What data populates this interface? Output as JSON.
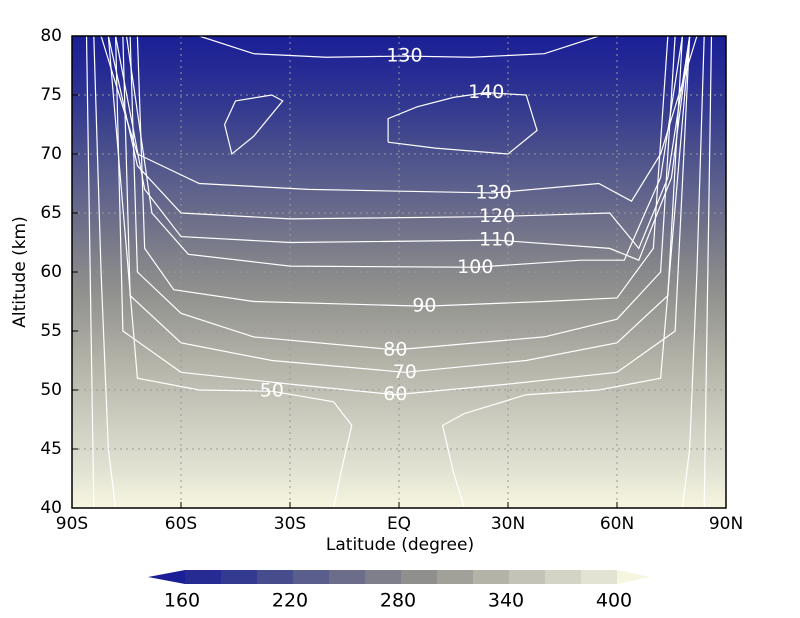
{
  "chart_data": {
    "type": "contour",
    "x_label": "Latitude (degree)",
    "y_label": "Altitude (km)",
    "xlim": [
      -90,
      90
    ],
    "ylim": [
      40,
      80
    ],
    "xticks": [
      {
        "value": -90,
        "label": "90S"
      },
      {
        "value": -60,
        "label": "60S"
      },
      {
        "value": -30,
        "label": "30S"
      },
      {
        "value": 0,
        "label": "EQ"
      },
      {
        "value": 30,
        "label": "30N"
      },
      {
        "value": 60,
        "label": "60N"
      },
      {
        "value": 90,
        "label": "90N"
      }
    ],
    "yticks": [
      40,
      45,
      50,
      55,
      60,
      65,
      70,
      75,
      80
    ],
    "grid": true,
    "contours": [
      {
        "level": 130,
        "x": [
          -55,
          -40,
          -20,
          1.5,
          20,
          40,
          55
        ],
        "y": [
          80,
          78.5,
          78.2,
          78.3,
          78.2,
          78.5,
          80
        ]
      },
      {
        "level": 140,
        "x": [
          -3,
          -3,
          5,
          15,
          24,
          35,
          38,
          30,
          10,
          -3
        ],
        "y": [
          71,
          73,
          74,
          74.8,
          75.2,
          75,
          72,
          70,
          70.5,
          71
        ]
      },
      {
        "x": [
          -48,
          -45,
          -35,
          -32,
          -40,
          -46,
          -48
        ],
        "y": [
          72.5,
          74.5,
          75,
          74.5,
          71.5,
          70,
          72.5
        ]
      },
      {
        "level": 130,
        "x": [
          -82,
          -72,
          -55,
          -25,
          26,
          55,
          64,
          72,
          82
        ],
        "y": [
          80,
          70,
          67.5,
          67,
          66.7,
          67.5,
          66,
          70,
          80
        ]
      },
      {
        "level": 120,
        "x": [
          -80,
          -72,
          -60,
          -30,
          27,
          58,
          66,
          74,
          80
        ],
        "y": [
          80,
          69,
          65,
          64.5,
          64.7,
          65,
          62,
          68,
          80
        ]
      },
      {
        "level": 110,
        "x": [
          -78,
          -70,
          -60,
          -30,
          27,
          58,
          66,
          75,
          80
        ],
        "y": [
          80,
          67,
          63,
          62.5,
          62.7,
          62,
          61,
          68,
          80
        ]
      },
      {
        "level": 100,
        "x": [
          -75,
          -68,
          -58,
          -30,
          21,
          50,
          62,
          72,
          78
        ],
        "y": [
          80,
          65,
          61.5,
          60.5,
          60.4,
          61,
          61,
          68,
          80
        ]
      },
      {
        "level": 90,
        "x": [
          -72,
          -70,
          -62,
          -40,
          7,
          40,
          60,
          70,
          74
        ],
        "y": [
          80,
          62,
          58.5,
          57.5,
          57.1,
          57.5,
          57.8,
          62,
          80
        ]
      },
      {
        "level": 80,
        "x": [
          -74,
          -72,
          -60,
          -40,
          -1,
          40,
          60,
          72,
          76
        ],
        "y": [
          80,
          60,
          56.5,
          54.5,
          53.4,
          54.5,
          56,
          60,
          80
        ]
      },
      {
        "level": 70,
        "x": [
          -76,
          -74,
          -60,
          -35,
          1.6,
          35,
          60,
          74,
          78
        ],
        "y": [
          80,
          58,
          54,
          52.5,
          51.5,
          52.5,
          54,
          58,
          80
        ]
      },
      {
        "level": 60,
        "x": [
          -78,
          -76,
          -60,
          -30,
          -1,
          30,
          60,
          76,
          80
        ],
        "y": [
          80,
          55,
          51.5,
          50.5,
          49.6,
          50.5,
          51.5,
          55,
          80
        ]
      },
      {
        "level": 50,
        "x": [
          -80,
          -72,
          -55,
          -35,
          -18,
          -13,
          -16,
          -18
        ],
        "y": [
          80,
          51,
          50,
          49.9,
          49,
          47,
          43,
          40
        ]
      },
      {
        "x": [
          80,
          72,
          55,
          35,
          18,
          12,
          15,
          18
        ],
        "y": [
          80,
          51,
          50,
          49.6,
          48,
          47,
          43,
          40
        ]
      },
      {
        "x": [
          -84,
          -82,
          -80,
          -78
        ],
        "y": [
          80,
          60,
          45,
          40
        ]
      },
      {
        "x": [
          84,
          82,
          80,
          78
        ],
        "y": [
          80,
          60,
          45,
          40
        ]
      },
      {
        "x": [
          -86,
          -85,
          -84
        ],
        "y": [
          80,
          60,
          40
        ]
      },
      {
        "x": [
          86,
          85,
          84
        ],
        "y": [
          80,
          60,
          40
        ]
      }
    ],
    "colorbar": {
      "levels": [
        160,
        180,
        200,
        220,
        240,
        260,
        280,
        300,
        320,
        340,
        360,
        380,
        400
      ],
      "ticks": [
        160,
        220,
        280,
        340,
        400
      ],
      "colors": [
        "#1a1f96",
        "#262b94",
        "#343a8f",
        "#474c8c",
        "#5a5e8c",
        "#6b6d8a",
        "#7e7f8a",
        "#8f908d",
        "#a1a19a",
        "#b3b3a8",
        "#c3c3b7",
        "#d3d3c6",
        "#e3e3d4",
        "#f6f6e0"
      ]
    }
  }
}
